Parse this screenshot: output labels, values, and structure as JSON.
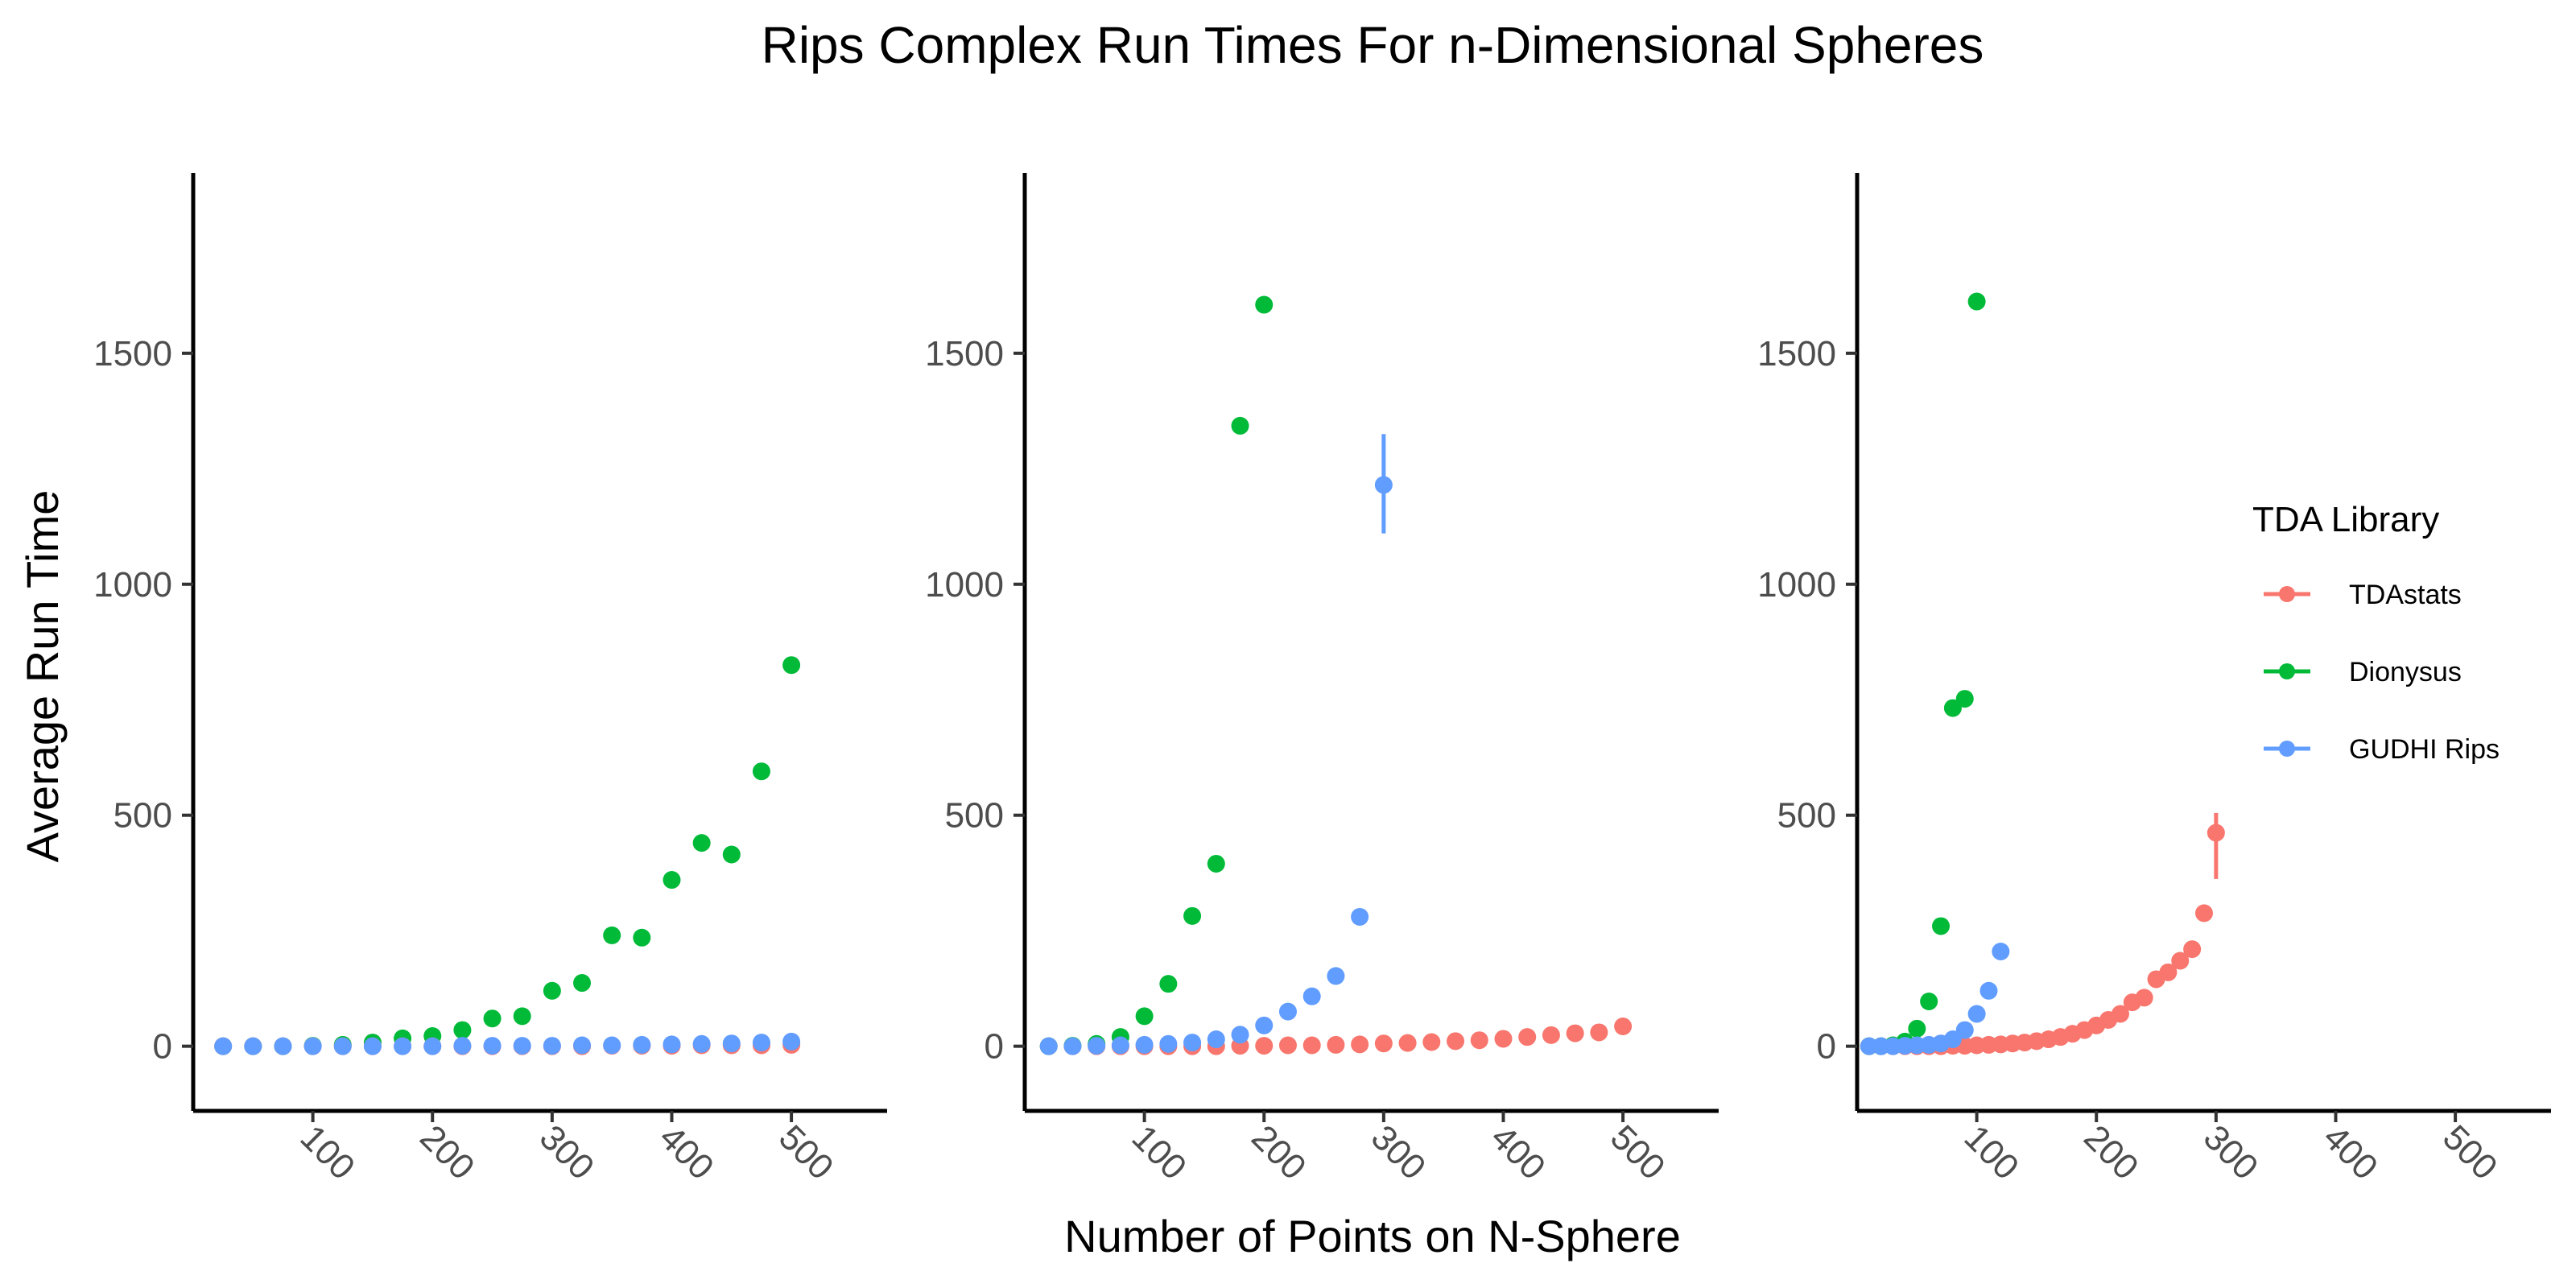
{
  "chart_data": {
    "type": "scatter",
    "title": "Rips Complex Run Times For n-Dimensional Spheres",
    "xlabel": "Number of Points on N-Sphere",
    "ylabel": "Average Run Time",
    "ylim": [
      -140,
      1890
    ],
    "xlim": [
      0,
      580
    ],
    "yticks": [
      0,
      500,
      1000,
      1500
    ],
    "xticks": [
      100,
      200,
      300,
      400,
      500
    ],
    "grid": false,
    "legend": {
      "title": "TDA Library",
      "position": "right",
      "entries": [
        {
          "name": "TDAstats",
          "color": "#F8766D"
        },
        {
          "name": "Dionysus",
          "color": "#00BA38"
        },
        {
          "name": "GUDHI Rips",
          "color": "#619CFF"
        }
      ]
    },
    "panels": [
      {
        "series": [
          {
            "name": "Dionysus",
            "color": "#00BA38",
            "x": [
              25,
              50,
              75,
              100,
              125,
              150,
              175,
              200,
              225,
              250,
              275,
              300,
              325,
              350,
              375,
              400,
              425,
              450,
              475,
              500
            ],
            "y": [
              0,
              0,
              0,
              1,
              3,
              8,
              17,
              22,
              35,
              60,
              65,
              120,
              137,
              240,
              235,
              360,
              440,
              415,
              595,
              825
            ]
          },
          {
            "name": "TDAstats",
            "color": "#F8766D",
            "x": [
              25,
              50,
              75,
              100,
              125,
              150,
              175,
              200,
              225,
              250,
              275,
              300,
              325,
              350,
              375,
              400,
              425,
              450,
              475,
              500
            ],
            "y": [
              0,
              0,
              0,
              0,
              0,
              0,
              0,
              0,
              0,
              0,
              0,
              0,
              0,
              1,
              1,
              1,
              2,
              2,
              2,
              3
            ]
          },
          {
            "name": "GUDHI Rips",
            "color": "#619CFF",
            "x": [
              25,
              50,
              75,
              100,
              125,
              150,
              175,
              200,
              225,
              250,
              275,
              300,
              325,
              350,
              375,
              400,
              425,
              450,
              475,
              500
            ],
            "y": [
              0,
              0,
              0,
              0,
              0,
              0,
              0,
              0,
              1,
              1,
              1,
              1,
              2,
              2,
              3,
              4,
              5,
              6,
              8,
              10
            ]
          }
        ]
      },
      {
        "series": [
          {
            "name": "TDAstats",
            "color": "#F8766D",
            "x": [
              20,
              40,
              60,
              80,
              100,
              120,
              140,
              160,
              180,
              200,
              220,
              240,
              260,
              280,
              300,
              320,
              340,
              360,
              380,
              400,
              420,
              440,
              460,
              480,
              500
            ],
            "y": [
              0,
              0,
              0,
              0,
              0,
              0,
              0,
              0,
              1,
              1,
              2,
              2,
              3,
              4,
              6,
              7,
              9,
              11,
              13,
              16,
              20,
              24,
              28,
              30,
              43
            ]
          },
          {
            "name": "Dionysus",
            "color": "#00BA38",
            "x": [
              20,
              40,
              60,
              80,
              100,
              120,
              140,
              160,
              180,
              200
            ],
            "y": [
              0,
              1,
              5,
              20,
              65,
              135,
              282,
              395,
              1343,
              1605
            ]
          },
          {
            "name": "GUDHI Rips",
            "color": "#619CFF",
            "x": [
              20,
              40,
              60,
              80,
              100,
              120,
              140,
              160,
              180,
              200,
              220,
              240,
              260,
              280,
              300
            ],
            "y": [
              0,
              0,
              1,
              2,
              3,
              5,
              8,
              15,
              25,
              45,
              75,
              108,
              152,
              280,
              1215
            ],
            "error": {
              "index": 14,
              "low": 1110,
              "high": 1325
            }
          }
        ]
      },
      {
        "series": [
          {
            "name": "TDAstats",
            "color": "#F8766D",
            "x": [
              10,
              20,
              30,
              40,
              50,
              60,
              70,
              80,
              90,
              100,
              110,
              120,
              130,
              140,
              150,
              160,
              170,
              180,
              190,
              200,
              210,
              220,
              230,
              240,
              250,
              260,
              270,
              280,
              290,
              300
            ],
            "y": [
              0,
              0,
              0,
              0,
              0,
              0,
              0,
              1,
              1,
              2,
              3,
              4,
              6,
              8,
              11,
              15,
              20,
              27,
              35,
              45,
              57,
              70,
              95,
              105,
              145,
              160,
              185,
              210,
              288,
              462
            ],
            "error": {
              "index": 29,
              "low": 362,
              "high": 505
            }
          },
          {
            "name": "Dionysus",
            "color": "#00BA38",
            "x": [
              10,
              20,
              30,
              40,
              50,
              60,
              70,
              80,
              90,
              100
            ],
            "y": [
              0,
              0,
              2,
              10,
              38,
              97,
              260,
              732,
              752,
              1612
            ]
          },
          {
            "name": "GUDHI Rips",
            "color": "#619CFF",
            "x": [
              10,
              20,
              30,
              40,
              50,
              60,
              70,
              80,
              90,
              100,
              110,
              120
            ],
            "y": [
              0,
              0,
              0,
              1,
              2,
              3,
              6,
              15,
              35,
              70,
              120,
              205
            ]
          }
        ]
      }
    ]
  }
}
